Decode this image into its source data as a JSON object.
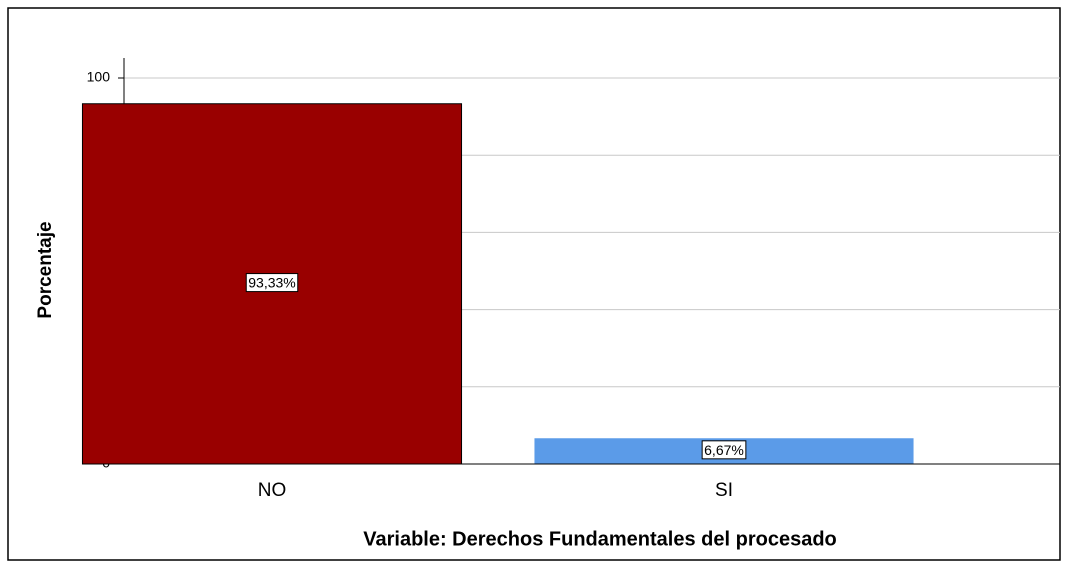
{
  "chart_data": {
    "type": "bar",
    "x_label": "Variable: Derechos Fundamentales del procesado",
    "y_label": "Porcentaje",
    "categories": [
      "NO",
      "SI"
    ],
    "values": [
      93.33,
      6.67
    ],
    "value_labels": [
      "93,33%",
      "6,67%"
    ],
    "colors": [
      "#990000",
      "#5b9be8"
    ],
    "ylim": [
      0,
      100
    ],
    "yticks": [
      0,
      20,
      40,
      60,
      80,
      100
    ],
    "grid": true
  }
}
